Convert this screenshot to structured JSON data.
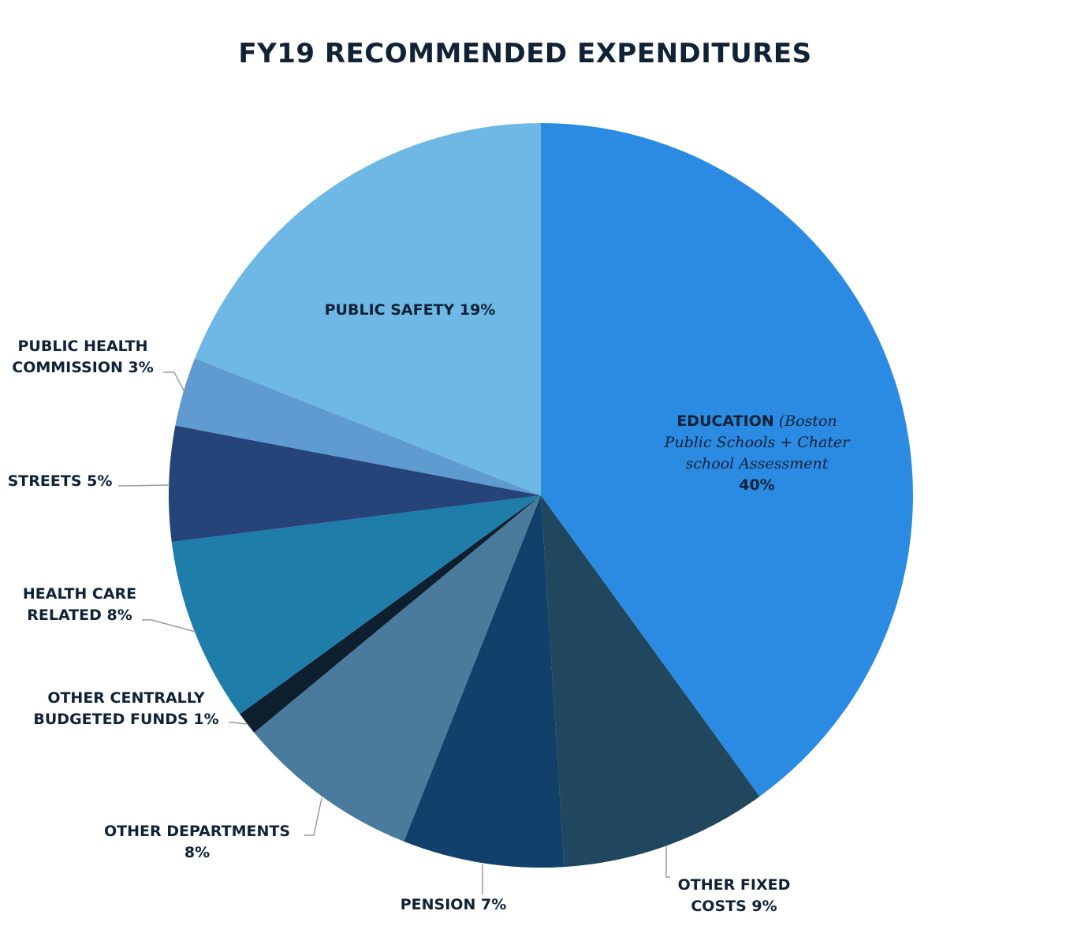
{
  "title": "FY19 RECOMMENDED EXPENDITURES",
  "chart_data": {
    "type": "pie",
    "title": "FY19 RECOMMENDED EXPENDITURES",
    "start_angle_deg": 0,
    "direction": "clockwise",
    "slices": [
      {
        "name": "EDUCATION",
        "detail_lines": [
          "(Boston",
          "Public Schools + Chater",
          "school Assessment"
        ],
        "percent_label": "40%",
        "value": 40,
        "color": "#2b8be3"
      },
      {
        "name": "OTHER FIXED COSTS",
        "label_lines": [
          "OTHER FIXED",
          "COSTS 9%"
        ],
        "value": 9,
        "color": "#20475e"
      },
      {
        "name": "PENSION",
        "label_lines": [
          "PENSION 7%"
        ],
        "value": 7,
        "color": "#11406a"
      },
      {
        "name": "OTHER DEPARTMENTS",
        "label_lines": [
          "OTHER DEPARTMENTS",
          "8%"
        ],
        "value": 8,
        "color": "#4a7b9d"
      },
      {
        "name": "OTHER CENTRALLY BUDGETED FUNDS",
        "label_lines": [
          "OTHER CENTRALLY",
          "BUDGETED FUNDS 1%"
        ],
        "value": 1,
        "color": "#0e1f30"
      },
      {
        "name": "HEALTH CARE RELATED",
        "label_lines": [
          "HEALTH CARE",
          "RELATED 8%"
        ],
        "value": 8,
        "color": "#1f7ea9"
      },
      {
        "name": "STREETS",
        "label_lines": [
          "STREETS 5%"
        ],
        "value": 5,
        "color": "#25447a"
      },
      {
        "name": "PUBLIC HEALTH COMMISSION",
        "label_lines": [
          "PUBLIC HEALTH",
          "COMMISSION 3%"
        ],
        "value": 3,
        "color": "#5f9bd1"
      },
      {
        "name": "PUBLIC SAFETY",
        "label_lines": [
          "PUBLIC SAFETY 19%"
        ],
        "value": 19,
        "color": "#6fb8e5"
      }
    ]
  }
}
